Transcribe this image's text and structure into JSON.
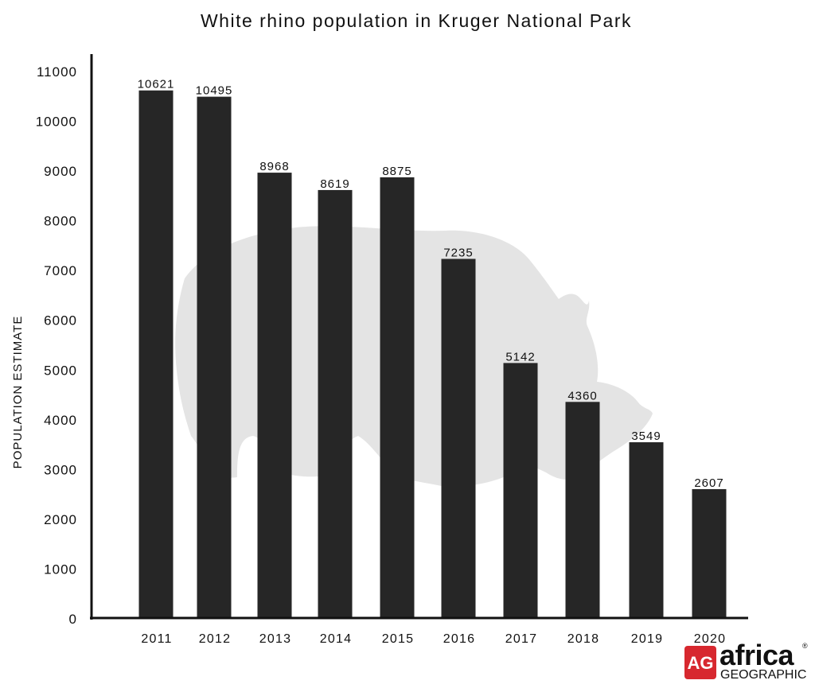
{
  "chart_data": {
    "type": "bar",
    "title": "White rhino population in Kruger National Park",
    "xlabel": "",
    "ylabel": "POPULATION ESTIMATE",
    "categories": [
      "2011",
      "2012",
      "2013",
      "2014",
      "2015",
      "2016",
      "2017",
      "2018",
      "2019",
      "2020"
    ],
    "values": [
      10621,
      10495,
      8968,
      8619,
      8875,
      7235,
      5142,
      4360,
      3549,
      2607
    ],
    "data_labels": [
      "10621",
      "10495",
      "8968",
      "8619",
      "8875",
      "7235",
      "5142",
      "4360",
      "3549",
      "2607"
    ],
    "ylim": [
      0,
      11000
    ],
    "yticks": [
      0,
      1000,
      2000,
      3000,
      4000,
      5000,
      6000,
      7000,
      8000,
      9000,
      10000,
      11000
    ],
    "grid": false,
    "legend": "none",
    "bar_color": "#262626",
    "background_silhouette": "rhino-silhouette",
    "silhouette_color": "#e4e4e4"
  },
  "branding": {
    "badge_text": "AG",
    "name_top": "africa",
    "name_bottom": "GEOGRAPHIC",
    "registered_mark": "®",
    "badge_color": "#d7282f"
  }
}
